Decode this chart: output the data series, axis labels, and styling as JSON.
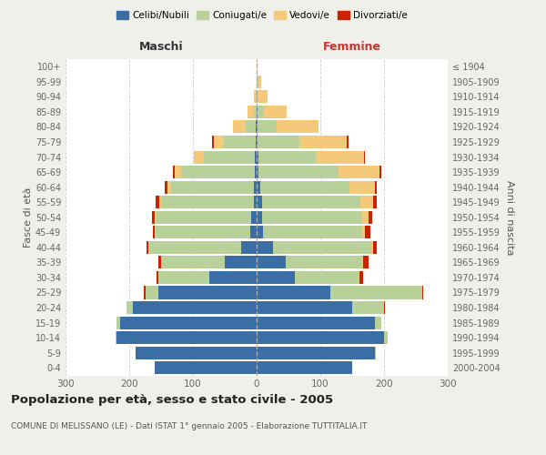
{
  "age_groups": [
    "0-4",
    "5-9",
    "10-14",
    "15-19",
    "20-24",
    "25-29",
    "30-34",
    "35-39",
    "40-44",
    "45-49",
    "50-54",
    "55-59",
    "60-64",
    "65-69",
    "70-74",
    "75-79",
    "80-84",
    "85-89",
    "90-94",
    "95-99",
    "100+"
  ],
  "birth_years": [
    "2000-2004",
    "1995-1999",
    "1990-1994",
    "1985-1989",
    "1980-1984",
    "1975-1979",
    "1970-1974",
    "1965-1969",
    "1960-1964",
    "1955-1959",
    "1950-1954",
    "1945-1949",
    "1940-1944",
    "1935-1939",
    "1930-1934",
    "1925-1929",
    "1920-1924",
    "1915-1919",
    "1910-1914",
    "1905-1909",
    "≤ 1904"
  ],
  "colors": {
    "celibi": "#3a6ea5",
    "coniugati": "#b8d09a",
    "vedovi": "#f5c97a",
    "divorziati": "#cc2200"
  },
  "maschi": {
    "celibi": [
      160,
      190,
      220,
      215,
      195,
      155,
      75,
      50,
      25,
      10,
      8,
      5,
      5,
      3,
      3,
      2,
      2,
      0,
      0,
      0,
      0
    ],
    "coniugati": [
      0,
      0,
      2,
      5,
      10,
      20,
      80,
      100,
      145,
      150,
      150,
      145,
      130,
      115,
      80,
      50,
      15,
      5,
      2,
      0,
      0
    ],
    "vedovi": [
      0,
      0,
      0,
      0,
      0,
      0,
      0,
      0,
      0,
      0,
      2,
      3,
      5,
      10,
      15,
      15,
      20,
      10,
      2,
      0,
      0
    ],
    "divorziati": [
      0,
      0,
      0,
      0,
      0,
      2,
      2,
      5,
      3,
      3,
      5,
      5,
      5,
      3,
      0,
      3,
      0,
      0,
      0,
      0,
      0
    ]
  },
  "femmine": {
    "celibi": [
      150,
      185,
      200,
      185,
      150,
      115,
      60,
      45,
      25,
      10,
      8,
      8,
      5,
      3,
      3,
      2,
      2,
      2,
      0,
      0,
      0
    ],
    "coniugati": [
      0,
      2,
      5,
      10,
      50,
      145,
      100,
      120,
      155,
      155,
      158,
      155,
      140,
      125,
      90,
      65,
      30,
      10,
      2,
      2,
      0
    ],
    "vedovi": [
      0,
      0,
      0,
      0,
      0,
      0,
      2,
      2,
      3,
      5,
      10,
      20,
      40,
      65,
      75,
      75,
      65,
      35,
      15,
      5,
      2
    ],
    "divorziati": [
      0,
      0,
      0,
      0,
      2,
      2,
      5,
      8,
      5,
      8,
      5,
      5,
      3,
      3,
      2,
      2,
      0,
      0,
      0,
      0,
      0
    ]
  },
  "xlim": 300,
  "title": "Popolazione per età, sesso e stato civile - 2005",
  "subtitle": "COMUNE DI MELISSANO (LE) - Dati ISTAT 1° gennaio 2005 - Elaborazione TUTTITALIA.IT",
  "ylabel_left": "Fasce di età",
  "ylabel_right": "Anni di nascita",
  "label_maschi": "Maschi",
  "label_femmine": "Femmine",
  "legend_labels": [
    "Celibi/Nubili",
    "Coniugati/e",
    "Vedovi/e",
    "Divorziati/e"
  ],
  "bg_color": "#f0f0ea",
  "plot_bg_color": "#ffffff",
  "grid_color": "#cccccc",
  "center_line_color": "#aaaaaa",
  "tick_color": "#666666",
  "maschi_color": "#333333",
  "femmine_color": "#cc3333"
}
